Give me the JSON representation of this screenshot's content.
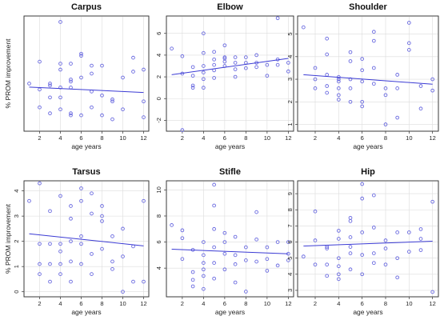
{
  "figure": {
    "ylabel": "% PROM improvement",
    "xlabel": "age years",
    "marker_color": "#6a6ae0",
    "line_color": "#3b3bd4",
    "grid": true
  },
  "chart_data": [
    {
      "type": "scatter",
      "title": "Carpus",
      "xlabel": "age years",
      "ylabel": "% PROM improvement",
      "xlim": [
        0.5,
        12.5
      ],
      "ylim": [
        1.5,
        7.3
      ],
      "xticks": [
        2,
        4,
        6,
        8,
        10,
        12
      ],
      "yticks": [],
      "x": [
        1,
        2,
        2,
        2,
        3,
        3,
        3,
        3,
        4,
        4,
        4,
        4,
        4,
        4,
        5,
        5,
        5,
        5,
        5,
        5,
        6,
        6,
        6,
        6,
        7,
        7,
        7,
        7,
        8,
        8,
        8,
        9,
        9,
        9,
        10,
        10,
        11,
        11,
        12,
        12,
        12
      ],
      "y": [
        3.9,
        3.6,
        2.7,
        5.0,
        3.8,
        3.2,
        2.4,
        3.9,
        7.0,
        4.9,
        4.6,
        3.7,
        3.2,
        2.6,
        4.9,
        4.1,
        4.0,
        3.7,
        2.4,
        2.3,
        5.3,
        5.4,
        4.2,
        2.3,
        4.4,
        3.5,
        2.7,
        4.8,
        4.8,
        3.3,
        2.3,
        3.1,
        2.1,
        3.0,
        4.2,
        2.6,
        5.2,
        4.5,
        4.6,
        3.0,
        2.2
      ],
      "trend": {
        "x": [
          1,
          12
        ],
        "y": [
          3.72,
          3.45
        ]
      }
    },
    {
      "type": "scatter",
      "title": "Elbow",
      "xlabel": "age years",
      "ylabel": "",
      "xlim": [
        0.5,
        12.5
      ],
      "ylim": [
        -3.0,
        7.6
      ],
      "xticks": [
        2,
        4,
        6,
        8,
        10,
        12
      ],
      "yticks": [
        -2,
        0,
        2,
        4,
        6
      ],
      "x": [
        1,
        2,
        2,
        2,
        3,
        3,
        3,
        3,
        4,
        4,
        4,
        4,
        4,
        4,
        5,
        5,
        5,
        5,
        5,
        6,
        6,
        6,
        6,
        6,
        7,
        7,
        7,
        7,
        8,
        8,
        8,
        9,
        9,
        9,
        10,
        10,
        11,
        11,
        11,
        12,
        12
      ],
      "y": [
        4.6,
        3.9,
        2.3,
        -2.9,
        2.9,
        2.1,
        1.2,
        1.0,
        6.0,
        4.2,
        3.0,
        2.4,
        1.8,
        1.0,
        4.3,
        3.6,
        3.1,
        2.6,
        1.9,
        3.8,
        3.7,
        3.4,
        3.0,
        4.9,
        3.8,
        3.3,
        2.7,
        2.0,
        3.3,
        3.8,
        2.8,
        3.3,
        2.9,
        4.0,
        2.1,
        3.1,
        7.4,
        3.6,
        3.1,
        3.3,
        2.5
      ],
      "trend": {
        "x": [
          1,
          12
        ],
        "y": [
          2.2,
          3.7
        ]
      }
    },
    {
      "type": "scatter",
      "title": "Shoulder",
      "xlabel": "age years",
      "ylabel": "",
      "xlim": [
        0.5,
        12.5
      ],
      "ylim": [
        0.7,
        5.8
      ],
      "xticks": [
        2,
        4,
        6,
        8,
        10,
        12
      ],
      "yticks": [
        1,
        2,
        3,
        4,
        5
      ],
      "x": [
        1,
        2,
        2,
        2,
        3,
        3,
        3,
        3,
        3,
        4,
        4,
        4,
        4,
        4,
        4,
        5,
        5,
        5,
        5,
        5,
        6,
        6,
        6,
        6,
        6,
        7,
        7,
        7,
        7,
        8,
        8,
        8,
        9,
        9,
        9,
        10,
        10,
        10,
        11,
        11,
        12,
        12
      ],
      "y": [
        5.3,
        3.5,
        3.0,
        2.6,
        3.2,
        2.7,
        2.4,
        4.1,
        4.8,
        3.0,
        2.9,
        2.6,
        2.3,
        2.1,
        3.1,
        4.2,
        3.8,
        3.0,
        2.6,
        2.0,
        3.9,
        3.4,
        2.9,
        2.0,
        1.8,
        5.1,
        4.7,
        3.5,
        2.8,
        2.6,
        2.3,
        1.0,
        3.2,
        2.6,
        1.3,
        5.5,
        4.6,
        4.3,
        1.7,
        2.7,
        3.0,
        2.5
      ],
      "trend": {
        "x": [
          1,
          12
        ],
        "y": [
          3.2,
          2.78
        ]
      }
    },
    {
      "type": "scatter",
      "title": "Tarsus",
      "xlabel": "age years",
      "ylabel": "% PROM improvement",
      "xlim": [
        0.5,
        12.5
      ],
      "ylim": [
        -0.2,
        4.4
      ],
      "xticks": [
        2,
        4,
        6,
        8,
        10,
        12
      ],
      "yticks": [
        0,
        1,
        2,
        3,
        4
      ],
      "x": [
        1,
        2,
        2,
        2,
        2,
        3,
        3,
        3,
        3,
        4,
        4,
        4,
        4,
        4,
        5,
        5,
        5,
        5,
        5,
        6,
        6,
        6,
        6,
        6,
        7,
        7,
        7,
        7,
        8,
        8,
        8,
        8,
        9,
        9,
        9,
        10,
        10,
        10,
        11,
        11,
        12,
        12
      ],
      "y": [
        3.6,
        4.3,
        1.9,
        1.1,
        0.7,
        3.2,
        1.9,
        1.1,
        0.4,
        3.8,
        1.6,
        1.1,
        0.7,
        1.9,
        3.4,
        2.9,
        2.0,
        1.2,
        0.4,
        4.1,
        3.6,
        2.2,
        1.9,
        1.1,
        3.9,
        3.1,
        1.5,
        0.7,
        3.4,
        2.8,
        1.7,
        3.0,
        2.2,
        1.2,
        0.9,
        2.5,
        1.4,
        0.0,
        0.4,
        1.8,
        3.6,
        0.4
      ],
      "trend": {
        "x": [
          1,
          12
        ],
        "y": [
          2.3,
          1.82
        ]
      }
    },
    {
      "type": "scatter",
      "title": "Stifle",
      "xlabel": "age years",
      "ylabel": "",
      "xlim": [
        0.5,
        12.5
      ],
      "ylim": [
        1.8,
        10.7
      ],
      "xticks": [
        2,
        4,
        6,
        8,
        10,
        12
      ],
      "yticks": [
        4,
        6,
        8,
        10
      ],
      "x": [
        1,
        2,
        2,
        2,
        3,
        3,
        3,
        3,
        4,
        4,
        4,
        4,
        4,
        4,
        5,
        5,
        5,
        5,
        5,
        5,
        6,
        6,
        6,
        6,
        7,
        7,
        7,
        7,
        8,
        8,
        8,
        9,
        9,
        9,
        10,
        10,
        10,
        11,
        11,
        12,
        12,
        12
      ],
      "y": [
        7.3,
        6.9,
        6.3,
        4.7,
        5.4,
        3.7,
        3.1,
        2.6,
        6.0,
        5.0,
        4.4,
        3.9,
        3.4,
        2.4,
        10.4,
        8.8,
        7.0,
        5.6,
        4.4,
        3.2,
        6.7,
        6.0,
        5.1,
        3.9,
        6.4,
        5.0,
        4.3,
        2.9,
        5.6,
        4.6,
        2.2,
        8.3,
        6.2,
        4.5,
        5.6,
        4.7,
        3.8,
        6.0,
        4.2,
        6.0,
        5.1,
        4.6
      ],
      "trend": {
        "x": [
          1,
          12
        ],
        "y": [
          5.45,
          5.1
        ]
      }
    },
    {
      "type": "scatter",
      "title": "Hip",
      "xlabel": "age years",
      "ylabel": "",
      "xlim": [
        0.5,
        12.5
      ],
      "ylim": [
        2.6,
        9.8
      ],
      "xticks": [
        2,
        4,
        6,
        8,
        10,
        12
      ],
      "yticks": [
        3,
        4,
        5,
        6,
        7,
        8,
        9
      ],
      "x": [
        1,
        2,
        2,
        2,
        3,
        3,
        3,
        3,
        4,
        4,
        4,
        4,
        4,
        4,
        5,
        5,
        5,
        5,
        5,
        5,
        6,
        6,
        6,
        6,
        6,
        7,
        7,
        7,
        7,
        8,
        8,
        8,
        9,
        9,
        9,
        10,
        10,
        11,
        11,
        11,
        12,
        12
      ],
      "y": [
        5.1,
        7.9,
        6.1,
        4.6,
        5.7,
        5.6,
        4.6,
        3.9,
        6.2,
        5.0,
        4.5,
        4.0,
        3.7,
        6.7,
        7.5,
        7.3,
        6.3,
        5.7,
        5.3,
        4.3,
        9.6,
        8.7,
        6.6,
        5.2,
        4.0,
        8.9,
        6.9,
        5.3,
        4.7,
        6.1,
        5.6,
        4.6,
        6.6,
        5.0,
        3.8,
        6.6,
        5.4,
        6.8,
        6.2,
        5.5,
        8.5,
        2.9
      ],
      "trend": {
        "x": [
          1,
          12
        ],
        "y": [
          5.75,
          6.05
        ]
      }
    }
  ]
}
